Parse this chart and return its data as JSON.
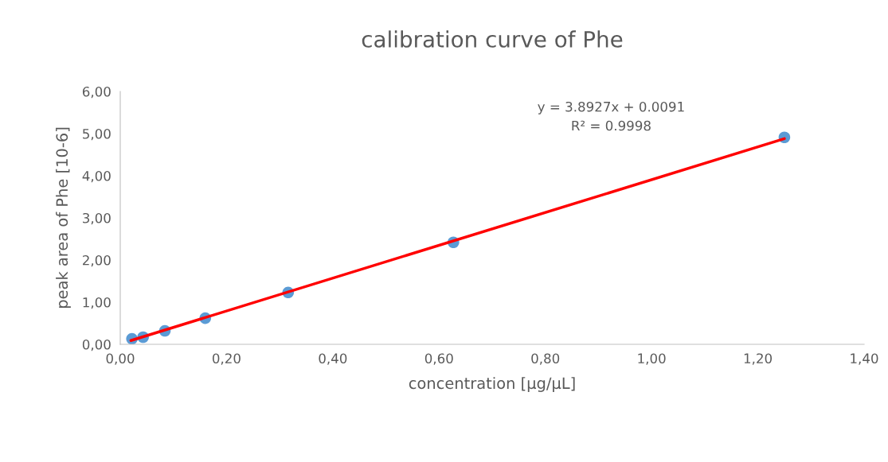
{
  "chart_data": {
    "type": "scatter",
    "title": "calibration curve of Phe",
    "xlabel": "concentration [µg/µL]",
    "ylabel": "peak area of Phe [10-6]",
    "series": [
      {
        "color": "#5b9bd5",
        "x": [
          0.022,
          0.043,
          0.084,
          0.16,
          0.316,
          0.627,
          1.25
        ],
        "values": [
          0.13,
          0.17,
          0.32,
          0.62,
          1.23,
          2.42,
          4.91
        ],
        "marker": "circle"
      },
      {
        "type": "line",
        "color": "#ff0000",
        "x": [
          0.02,
          1.25
        ],
        "values": [
          0.09,
          4.88
        ],
        "line_style": "solid"
      }
    ],
    "annotations": [
      "y = 3.8927x + 0.0091",
      "R² = 0.9998"
    ],
    "xlim": [
      0,
      1.4
    ],
    "xticks": [
      {
        "value": 0,
        "label": "0,00"
      },
      {
        "value": 0.2,
        "label": "0,20"
      },
      {
        "value": 0.4,
        "label": "0,40"
      },
      {
        "value": 0.6,
        "label": "0,60"
      },
      {
        "value": 0.8,
        "label": "0,80"
      },
      {
        "value": 1.0,
        "label": "1,00"
      },
      {
        "value": 1.2,
        "label": "1,20"
      },
      {
        "value": 1.4,
        "label": "1,40"
      }
    ],
    "ylim": [
      0,
      6
    ],
    "yticks": [
      {
        "value": 0,
        "label": "0,00"
      },
      {
        "value": 1,
        "label": "1,00"
      },
      {
        "value": 2,
        "label": "2,00"
      },
      {
        "value": 3,
        "label": "3,00"
      },
      {
        "value": 4,
        "label": "4,00"
      },
      {
        "value": 5,
        "label": "5,00"
      },
      {
        "value": 6,
        "label": "6,00"
      }
    ],
    "grid": false
  }
}
